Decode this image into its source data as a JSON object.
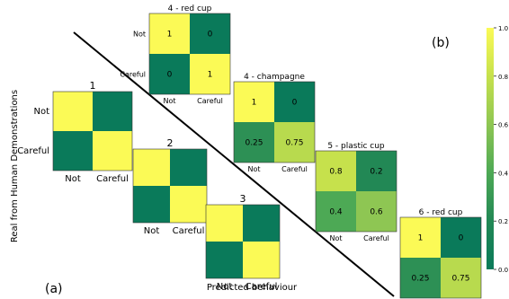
{
  "labels": {
    "panel_a": "(a)",
    "panel_b": "(b)",
    "y_axis": "Real from Human Demonstrations",
    "x_axis": "Predicted behaviour"
  },
  "colormap": {
    "stops": [
      [
        0.0,
        "#0a7a5a"
      ],
      [
        0.2,
        "#228855"
      ],
      [
        0.4,
        "#4da955"
      ],
      [
        0.6,
        "#8ec653"
      ],
      [
        0.8,
        "#c6e14c"
      ],
      [
        1.0,
        "#fbfa56"
      ]
    ],
    "ticks": [
      "0.0",
      "0.2",
      "0.4",
      "0.6",
      "0.8",
      "1.0"
    ]
  },
  "chart_data": [
    {
      "type": "heatmap",
      "title": "1",
      "row_labels": [
        "Not",
        "Careful"
      ],
      "col_labels": [
        "Not",
        "Careful"
      ],
      "values": [
        [
          1,
          0
        ],
        [
          0,
          1
        ]
      ],
      "show_values": false
    },
    {
      "type": "heatmap",
      "title": "2",
      "row_labels": [],
      "col_labels": [
        "Not",
        "Careful"
      ],
      "values": [
        [
          1,
          0
        ],
        [
          0,
          1
        ]
      ],
      "show_values": false
    },
    {
      "type": "heatmap",
      "title": "3",
      "row_labels": [],
      "col_labels": [
        "Not",
        "Careful"
      ],
      "values": [
        [
          1,
          0
        ],
        [
          0,
          1
        ]
      ],
      "show_values": false
    },
    {
      "type": "heatmap",
      "title": "4 - red cup",
      "row_labels": [
        "Not",
        "Careful"
      ],
      "col_labels": [
        "Not",
        "Careful"
      ],
      "values": [
        [
          1,
          0
        ],
        [
          0,
          1
        ]
      ],
      "value_labels": [
        [
          "1",
          "0"
        ],
        [
          "0",
          "1"
        ]
      ],
      "show_values": true
    },
    {
      "type": "heatmap",
      "title": "4 - champagne",
      "row_labels": [],
      "col_labels": [
        "Not",
        "Careful"
      ],
      "values": [
        [
          1,
          0
        ],
        [
          0.25,
          0.75
        ]
      ],
      "value_labels": [
        [
          "1",
          "0"
        ],
        [
          "0.25",
          "0.75"
        ]
      ],
      "show_values": true
    },
    {
      "type": "heatmap",
      "title": "5 - plastic cup",
      "row_labels": [],
      "col_labels": [
        "Not",
        "Careful"
      ],
      "values": [
        [
          0.8,
          0.2
        ],
        [
          0.4,
          0.6
        ]
      ],
      "value_labels": [
        [
          "0.8",
          "0.2"
        ],
        [
          "0.4",
          "0.6"
        ]
      ],
      "show_values": true
    },
    {
      "type": "heatmap",
      "title": "6 - red cup",
      "row_labels": [],
      "col_labels": [
        "Not",
        "Careful"
      ],
      "values": [
        [
          1,
          0
        ],
        [
          0.25,
          0.75
        ]
      ],
      "value_labels": [
        [
          "1",
          "0"
        ],
        [
          "0.25",
          "0.75"
        ]
      ],
      "show_values": true
    }
  ]
}
